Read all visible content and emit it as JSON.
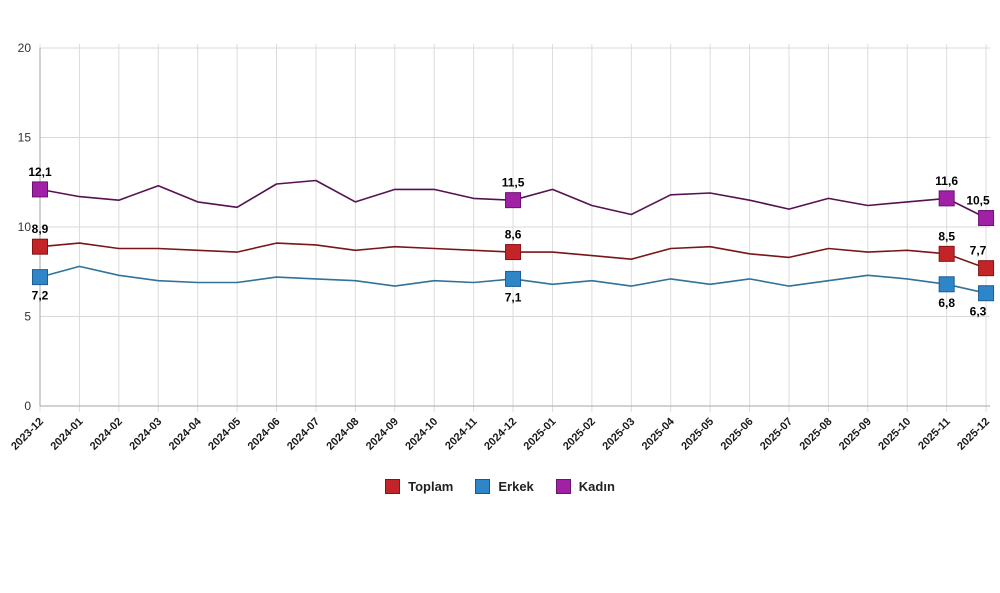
{
  "chart_data": {
    "type": "line",
    "title": "",
    "xlabel": "",
    "ylabel": "",
    "ylim": [
      0,
      20
    ],
    "yticks": [
      0,
      5,
      10,
      15,
      20
    ],
    "grid": true,
    "legend_position": "bottom-center",
    "x": [
      "2023-12",
      "2024-01",
      "2024-02",
      "2024-03",
      "2024-04",
      "2024-05",
      "2024-06",
      "2024-07",
      "2024-08",
      "2024-09",
      "2024-10",
      "2024-11",
      "2024-12",
      "2025-01",
      "2025-02",
      "2025-03",
      "2025-04",
      "2025-05",
      "2025-06",
      "2025-07",
      "2025-08",
      "2025-09",
      "2025-10",
      "2025-11",
      "2025-12"
    ],
    "series": [
      {
        "name": "Toplam",
        "color": "#c32428",
        "line_color": "#7a1619",
        "marker_border": "#861216",
        "values": [
          8.9,
          9.1,
          8.8,
          8.8,
          8.7,
          8.6,
          9.1,
          9.0,
          8.7,
          8.9,
          8.8,
          8.7,
          8.6,
          8.6,
          8.4,
          8.2,
          8.8,
          8.9,
          8.5,
          8.3,
          8.8,
          8.6,
          8.7,
          8.5,
          7.7
        ],
        "labeled_points": [
          {
            "index": 0,
            "text": "8,9",
            "side": "above"
          },
          {
            "index": 12,
            "text": "8,6",
            "side": "above"
          },
          {
            "index": 23,
            "text": "8,5",
            "side": "above"
          },
          {
            "index": 24,
            "text": "7,7",
            "side": "above"
          }
        ]
      },
      {
        "name": "Erkek",
        "color": "#2e86c8",
        "line_color": "#2f729b",
        "marker_border": "#1d5e91",
        "values": [
          7.2,
          7.8,
          7.3,
          7.0,
          6.9,
          6.9,
          7.2,
          7.1,
          7.0,
          6.7,
          7.0,
          6.9,
          7.1,
          6.8,
          7.0,
          6.7,
          7.1,
          6.8,
          7.1,
          6.7,
          7.0,
          7.3,
          7.1,
          6.8,
          6.3
        ],
        "labeled_points": [
          {
            "index": 0,
            "text": "7,2",
            "side": "below"
          },
          {
            "index": 12,
            "text": "7,1",
            "side": "below"
          },
          {
            "index": 23,
            "text": "6,8",
            "side": "below"
          },
          {
            "index": 24,
            "text": "6,3",
            "side": "below"
          }
        ]
      },
      {
        "name": "Kadın",
        "color": "#a021a5",
        "line_color": "#561150",
        "marker_border": "#6e0f72",
        "values": [
          12.1,
          11.7,
          11.5,
          12.3,
          11.4,
          11.1,
          12.4,
          12.6,
          11.4,
          12.1,
          12.1,
          11.6,
          11.5,
          12.1,
          11.2,
          10.7,
          11.8,
          11.9,
          11.5,
          11.0,
          11.6,
          11.2,
          11.4,
          11.6,
          10.5
        ],
        "labeled_points": [
          {
            "index": 0,
            "text": "12,1",
            "side": "above"
          },
          {
            "index": 12,
            "text": "11,5",
            "side": "above"
          },
          {
            "index": 23,
            "text": "11,6",
            "side": "above"
          },
          {
            "index": 24,
            "text": "10,5",
            "side": "above"
          }
        ]
      }
    ]
  },
  "legend": {
    "items": [
      {
        "label": "Toplam",
        "color": "#c32428"
      },
      {
        "label": "Erkek",
        "color": "#2e86c8"
      },
      {
        "label": "Kadın",
        "color": "#a021a5"
      }
    ]
  }
}
